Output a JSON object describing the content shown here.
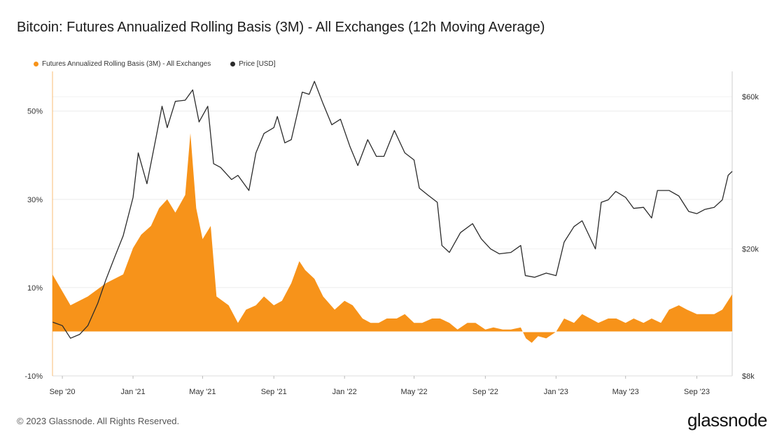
{
  "title": "Bitcoin: Futures Annualized Rolling Basis (3M) - All Exchanges (12h Moving Average)",
  "footer": {
    "copyright": "© 2023 Glassnode. All Rights Reserved.",
    "brand": "glassnode"
  },
  "chart_data": {
    "type": "area",
    "title": "Bitcoin: Futures Annualized Rolling Basis (3M) - All Exchanges (12h Moving Average)",
    "x_ticks": [
      "Sep '20",
      "Jan '21",
      "May '21",
      "Sep '21",
      "Jan '22",
      "May '22",
      "Sep '22",
      "Jan '23",
      "May '23",
      "Sep '23"
    ],
    "x_range": [
      "2020-08-15",
      "2023-11-01"
    ],
    "left_axis": {
      "ticks": [
        "-10%",
        "10%",
        "30%",
        "50%"
      ],
      "range": [
        -10,
        59
      ]
    },
    "right_axis": {
      "ticks": [
        "$8k",
        "$20k",
        "$60k"
      ],
      "range": [
        8000,
        72000
      ],
      "scale": "log"
    },
    "grid": true,
    "legend_position": "top-left",
    "series": [
      {
        "name": "Futures Annualized Rolling Basis (3M) - All Exchanges",
        "axis": "left",
        "type": "area",
        "color": "#f7931a",
        "x": [
          "2020-08-15",
          "2020-09-15",
          "2020-10-15",
          "2020-11-15",
          "2020-12-15",
          "2021-01-01",
          "2021-01-15",
          "2021-02-01",
          "2021-02-15",
          "2021-03-01",
          "2021-03-15",
          "2021-04-01",
          "2021-04-10",
          "2021-04-20",
          "2021-05-01",
          "2021-05-15",
          "2021-05-25",
          "2021-06-15",
          "2021-07-01",
          "2021-07-15",
          "2021-08-01",
          "2021-08-15",
          "2021-09-01",
          "2021-09-15",
          "2021-10-01",
          "2021-10-15",
          "2021-10-25",
          "2021-11-10",
          "2021-11-25",
          "2021-12-15",
          "2022-01-01",
          "2022-01-15",
          "2022-02-01",
          "2022-02-15",
          "2022-03-01",
          "2022-03-15",
          "2022-04-01",
          "2022-04-15",
          "2022-05-01",
          "2022-05-15",
          "2022-06-01",
          "2022-06-15",
          "2022-07-01",
          "2022-07-15",
          "2022-08-01",
          "2022-08-15",
          "2022-09-01",
          "2022-09-15",
          "2022-10-01",
          "2022-10-15",
          "2022-11-01",
          "2022-11-10",
          "2022-11-20",
          "2022-12-01",
          "2022-12-15",
          "2023-01-01",
          "2023-01-15",
          "2023-02-01",
          "2023-02-15",
          "2023-03-01",
          "2023-03-15",
          "2023-04-01",
          "2023-04-15",
          "2023-05-01",
          "2023-05-15",
          "2023-06-01",
          "2023-06-15",
          "2023-07-01",
          "2023-07-15",
          "2023-08-01",
          "2023-08-15",
          "2023-09-01",
          "2023-09-15",
          "2023-10-01",
          "2023-10-15",
          "2023-11-01"
        ],
        "y": [
          13,
          6,
          8,
          11,
          13,
          19,
          22,
          24,
          28,
          30,
          27,
          31,
          45,
          28,
          21,
          24,
          8,
          6,
          2,
          5,
          6,
          8,
          6,
          7,
          11,
          16,
          14,
          12,
          8,
          5,
          7,
          6,
          3,
          2,
          2,
          3,
          3,
          4,
          2,
          2,
          3,
          3,
          2,
          0.5,
          2,
          2,
          0.5,
          1,
          0.5,
          0.5,
          1,
          -1.5,
          -2.5,
          -1,
          -1.5,
          0,
          3,
          2,
          4,
          3,
          2,
          3,
          3,
          2,
          3,
          2,
          3,
          2,
          5,
          6,
          5,
          4,
          4,
          4,
          5,
          8.5
        ]
      },
      {
        "name": "Price [USD]",
        "axis": "right",
        "type": "line",
        "color": "#2b2b2b",
        "x": [
          "2020-08-15",
          "2020-09-01",
          "2020-09-15",
          "2020-10-01",
          "2020-10-15",
          "2020-11-01",
          "2020-11-15",
          "2020-12-01",
          "2020-12-15",
          "2021-01-01",
          "2021-01-10",
          "2021-01-25",
          "2021-02-10",
          "2021-02-20",
          "2021-03-01",
          "2021-03-15",
          "2021-04-01",
          "2021-04-14",
          "2021-04-25",
          "2021-05-10",
          "2021-05-20",
          "2021-06-01",
          "2021-06-20",
          "2021-07-01",
          "2021-07-20",
          "2021-08-01",
          "2021-08-15",
          "2021-09-01",
          "2021-09-07",
          "2021-09-20",
          "2021-10-01",
          "2021-10-20",
          "2021-11-01",
          "2021-11-10",
          "2021-11-25",
          "2021-12-10",
          "2021-12-25",
          "2022-01-10",
          "2022-01-24",
          "2022-02-10",
          "2022-02-25",
          "2022-03-10",
          "2022-03-28",
          "2022-04-15",
          "2022-05-01",
          "2022-05-10",
          "2022-05-25",
          "2022-06-10",
          "2022-06-18",
          "2022-07-01",
          "2022-07-20",
          "2022-08-10",
          "2022-08-25",
          "2022-09-10",
          "2022-09-25",
          "2022-10-15",
          "2022-11-01",
          "2022-11-09",
          "2022-11-25",
          "2022-12-15",
          "2023-01-01",
          "2023-01-15",
          "2023-02-01",
          "2023-02-15",
          "2023-03-10",
          "2023-03-20",
          "2023-04-01",
          "2023-04-14",
          "2023-05-01",
          "2023-05-15",
          "2023-06-01",
          "2023-06-15",
          "2023-06-25",
          "2023-07-15",
          "2023-08-01",
          "2023-08-18",
          "2023-09-01",
          "2023-09-15",
          "2023-10-01",
          "2023-10-15",
          "2023-10-25",
          "2023-11-01"
        ],
        "y": [
          11800,
          11500,
          10500,
          10800,
          11500,
          13500,
          16000,
          19000,
          22000,
          29000,
          40000,
          32000,
          45000,
          56000,
          48000,
          58000,
          58500,
          63000,
          50000,
          56000,
          37000,
          36000,
          33000,
          34000,
          30500,
          40000,
          46000,
          48000,
          52000,
          43000,
          44000,
          62000,
          61000,
          67000,
          57000,
          49000,
          51000,
          42000,
          36500,
          44000,
          39000,
          39000,
          47000,
          40000,
          38000,
          31000,
          29500,
          28000,
          20500,
          19500,
          22500,
          24000,
          21500,
          20000,
          19300,
          19500,
          20500,
          16500,
          16300,
          16800,
          16500,
          21000,
          23500,
          24500,
          20000,
          28000,
          28500,
          30300,
          29000,
          26800,
          27000,
          25000,
          30500,
          30500,
          29300,
          26200,
          25800,
          26600,
          27000,
          28500,
          34000,
          35000
        ]
      }
    ]
  }
}
